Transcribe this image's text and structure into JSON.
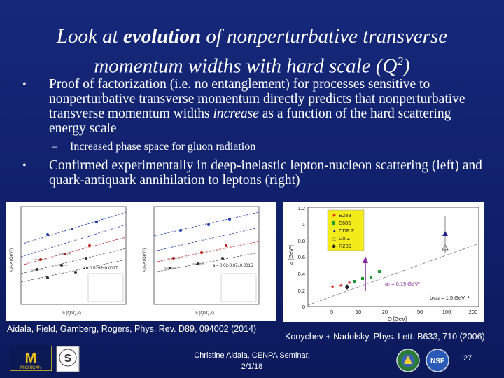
{
  "title": {
    "pre": "Look at ",
    "bold": "evolution",
    "mid": " of nonperturbative transverse momentum widths with hard scale (Q",
    "sup": "2",
    "post": ")"
  },
  "bullets": [
    {
      "pre": "Proof of factorization (i.e. no entanglement) for processes sensitive to nonperturbative transverse momentum directly predicts that nonperturbative transverse momentum widths ",
      "em": "increase",
      "post": " as a function of the hard scattering energy scale"
    },
    {
      "text": "Confirmed experimentally in deep-inelastic lepton-nucleon scattering (left) and quark-antiquark annihilation to leptons (right)"
    }
  ],
  "subbullet": "Increased phase space for gluon radiation",
  "left_figure": {
    "panel1_fit": "a = 0.0295±0.0027",
    "panel2_fit": "a = 0.02-0.07±0.0015",
    "xlabel": "ln (Q²/Q₀²)",
    "ylabel1": "<p²ₓ> (GeV²)",
    "ylabel2": "<p²ₓ> (GeV²)"
  },
  "right_figure": {
    "legend": [
      "E288",
      "E605",
      "CDF Z",
      "D0 Z",
      "R209"
    ],
    "legend_colors": [
      "#e0201b",
      "#1f9a2e",
      "#1a1aa0",
      "#555555",
      "#222222"
    ],
    "y_ticks": [
      "0",
      "0.2",
      "0.4",
      "0.6",
      "0.8",
      "1",
      "1.2"
    ],
    "x_ticks": [
      "5",
      "10",
      "20",
      "50",
      "100",
      "200"
    ],
    "xlabel": "Q [GeV]",
    "ylabel": "a [GeV²]",
    "annotation_a": "a₂ = 0.19 GeV²",
    "annotation_b": "bₘₐₓ = 1.5 GeV⁻¹"
  },
  "captions": {
    "left": "Aidala, Field, Gamberg, Rogers, Phys. Rev. D89, 094002 (2014)",
    "right": "Konychev + Nadolsky, Phys. Lett. B633, 710 (2006)"
  },
  "footer": {
    "line1": "Christine Aidala, CENPA Seminar,",
    "line2": "2/1/18"
  },
  "page_number": "27",
  "logos": {
    "michigan": "MICHIGAN",
    "s_seal": "S",
    "nsf": "NSF"
  }
}
